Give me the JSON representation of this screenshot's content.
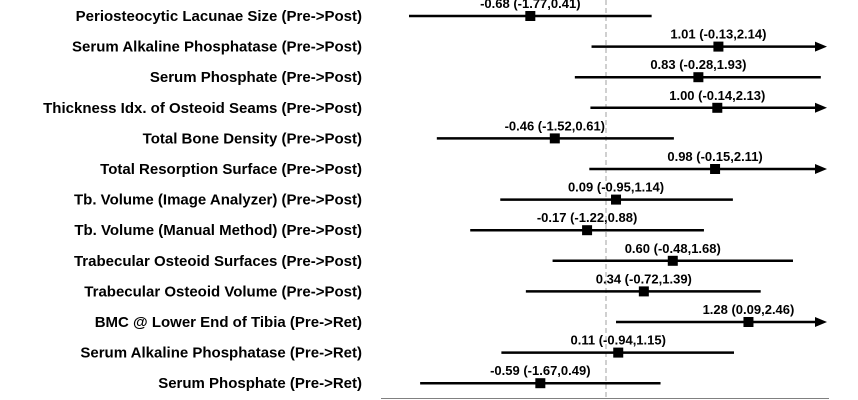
{
  "chart_data": {
    "type": "forest",
    "title": "",
    "xlabel": "",
    "ylabel": "",
    "xlim": [
      -2.1,
      2.2
    ],
    "reference_line": 0,
    "rows": [
      {
        "label": "Periosteocytic Lacunae Size (Pre->Post)",
        "estimate": -0.68,
        "lower": -1.77,
        "upper": 0.41,
        "ci_text": "-0.68 (-1.77,0.41)"
      },
      {
        "label": "Serum Alkaline Phosphatase (Pre->Post)",
        "estimate": 1.01,
        "lower": -0.13,
        "upper": 2.14,
        "ci_text": "1.01 (-0.13,2.14)"
      },
      {
        "label": "Serum Phosphate (Pre->Post)",
        "estimate": 0.83,
        "lower": -0.28,
        "upper": 1.93,
        "ci_text": "0.83 (-0.28,1.93)"
      },
      {
        "label": "Thickness Idx. of Osteoid Seams (Pre->Post)",
        "estimate": 1.0,
        "lower": -0.14,
        "upper": 2.13,
        "ci_text": "1.00 (-0.14,2.13)"
      },
      {
        "label": "Total Bone Density (Pre->Post)",
        "estimate": -0.46,
        "lower": -1.52,
        "upper": 0.61,
        "ci_text": "-0.46 (-1.52,0.61)"
      },
      {
        "label": "Total Resorption Surface (Pre->Post)",
        "estimate": 0.98,
        "lower": -0.15,
        "upper": 2.11,
        "ci_text": "0.98 (-0.15,2.11)"
      },
      {
        "label": "Tb. Volume (Image Analyzer) (Pre->Post)",
        "estimate": 0.09,
        "lower": -0.95,
        "upper": 1.14,
        "ci_text": "0.09 (-0.95,1.14)"
      },
      {
        "label": "Tb. Volume (Manual Method) (Pre->Post)",
        "estimate": -0.17,
        "lower": -1.22,
        "upper": 0.88,
        "ci_text": "-0.17 (-1.22,0.88)"
      },
      {
        "label": "Trabecular Osteoid Surfaces (Pre->Post)",
        "estimate": 0.6,
        "lower": -0.48,
        "upper": 1.68,
        "ci_text": "0.60 (-0.48,1.68)"
      },
      {
        "label": "Trabecular Osteoid Volume (Pre->Post)",
        "estimate": 0.34,
        "lower": -0.72,
        "upper": 1.39,
        "ci_text": "0.34 (-0.72,1.39)"
      },
      {
        "label": "BMC @ Lower End of Tibia (Pre->Ret)",
        "estimate": 1.28,
        "lower": 0.09,
        "upper": 2.46,
        "ci_text": "1.28 (0.09,2.46)"
      },
      {
        "label": "Serum Alkaline Phosphatase (Pre->Ret)",
        "estimate": 0.11,
        "lower": -0.94,
        "upper": 1.15,
        "ci_text": "0.11 (-0.94,1.15)"
      },
      {
        "label": "Serum Phosphate (Pre->Ret)",
        "estimate": -0.59,
        "lower": -1.67,
        "upper": 0.49,
        "ci_text": "-0.59 (-1.67,0.49)"
      }
    ]
  }
}
